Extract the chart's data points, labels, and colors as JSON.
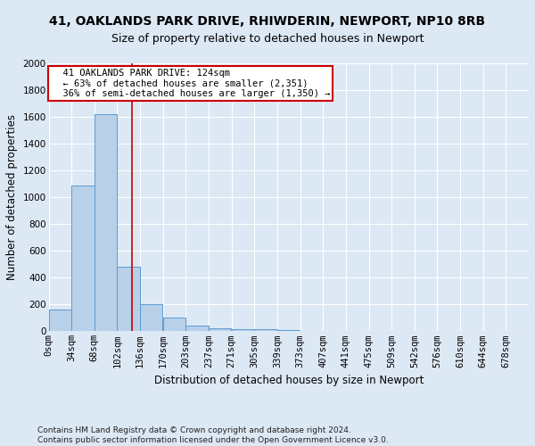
{
  "title1": "41, OAKLANDS PARK DRIVE, RHIWDERIN, NEWPORT, NP10 8RB",
  "title2": "Size of property relative to detached houses in Newport",
  "xlabel": "Distribution of detached houses by size in Newport",
  "ylabel": "Number of detached properties",
  "footnote": "Contains HM Land Registry data © Crown copyright and database right 2024.\nContains public sector information licensed under the Open Government Licence v3.0.",
  "bar_labels": [
    "0sqm",
    "34sqm",
    "68sqm",
    "102sqm",
    "136sqm",
    "170sqm",
    "203sqm",
    "237sqm",
    "271sqm",
    "305sqm",
    "339sqm",
    "373sqm",
    "407sqm",
    "441sqm",
    "475sqm",
    "509sqm",
    "542sqm",
    "576sqm",
    "610sqm",
    "644sqm",
    "678sqm"
  ],
  "bar_values": [
    160,
    1085,
    1620,
    480,
    200,
    100,
    42,
    25,
    15,
    15,
    12,
    0,
    0,
    0,
    0,
    0,
    0,
    0,
    0,
    0,
    0
  ],
  "bar_color": "#b8d0e8",
  "bar_edge_color": "#5b9bd5",
  "background_color": "#dde8f5",
  "plot_bg_color": "#dde8f5",
  "grid_color": "#ffffff",
  "property_line_x": 124,
  "property_line_color": "#cc0000",
  "annotation_text": "  41 OAKLANDS PARK DRIVE: 124sqm\n  ← 63% of detached houses are smaller (2,351)\n  36% of semi-detached houses are larger (1,350) →",
  "annotation_box_color": "#ffffff",
  "annotation_box_edge": "#cc0000",
  "ylim": [
    0,
    2000
  ],
  "bin_width": 34,
  "title1_fontsize": 10,
  "title2_fontsize": 9,
  "axis_label_fontsize": 8.5,
  "tick_fontsize": 7.5,
  "footnote_fontsize": 6.5
}
